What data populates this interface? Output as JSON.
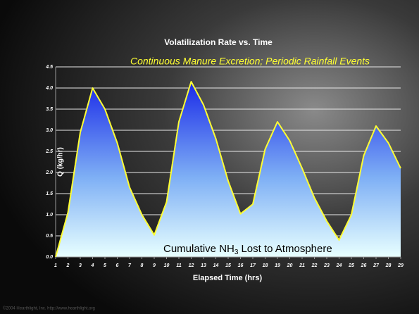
{
  "chart_data": {
    "type": "area",
    "title": "Volatilization Rate vs. Time",
    "subtitle": "Continuous Manure Excretion; Periodic Rainfall Events",
    "x_label": "Elapsed Time (hrs)",
    "y_label": "Q (kg/hr)",
    "annotation": [
      "Cumulative NH",
      "3",
      "Lost to Atmosphere"
    ],
    "footer": "©2004 Hearthlight, Inc. http://www.hearthlight.org",
    "x": [
      1,
      2,
      3,
      4,
      5,
      6,
      7,
      8,
      9,
      10,
      11,
      12,
      13,
      14,
      15,
      16,
      17,
      18,
      19,
      20,
      21,
      22,
      23,
      24,
      25,
      26,
      27,
      28,
      29
    ],
    "series": [
      {
        "color": "#ffff33",
        "values": [
          0.0,
          1.05,
          2.95,
          4.0,
          3.5,
          2.7,
          1.65,
          1.0,
          0.52,
          1.3,
          3.2,
          4.15,
          3.6,
          2.8,
          1.8,
          1.02,
          1.25,
          2.55,
          3.2,
          2.75,
          2.1,
          1.4,
          0.85,
          0.4,
          1.0,
          2.4,
          3.1,
          2.7,
          2.1
        ]
      }
    ],
    "xlim": [
      1,
      29
    ],
    "xticks": [
      1,
      2,
      3,
      4,
      5,
      6,
      7,
      8,
      9,
      10,
      11,
      12,
      13,
      14,
      15,
      16,
      17,
      18,
      19,
      20,
      21,
      22,
      23,
      24,
      25,
      26,
      27,
      28,
      29
    ],
    "ylim": [
      0,
      4.5
    ],
    "yticks": [
      {
        "value": 0,
        "label": "0.0"
      },
      0.5,
      {
        "value": 1,
        "label": "1.0"
      },
      1.5,
      {
        "value": 2,
        "label": "2.0"
      },
      2.5,
      {
        "value": 3,
        "label": "3.0"
      },
      3.5,
      {
        "value": 4,
        "label": "4.0"
      },
      4.5
    ],
    "grid": true
  }
}
